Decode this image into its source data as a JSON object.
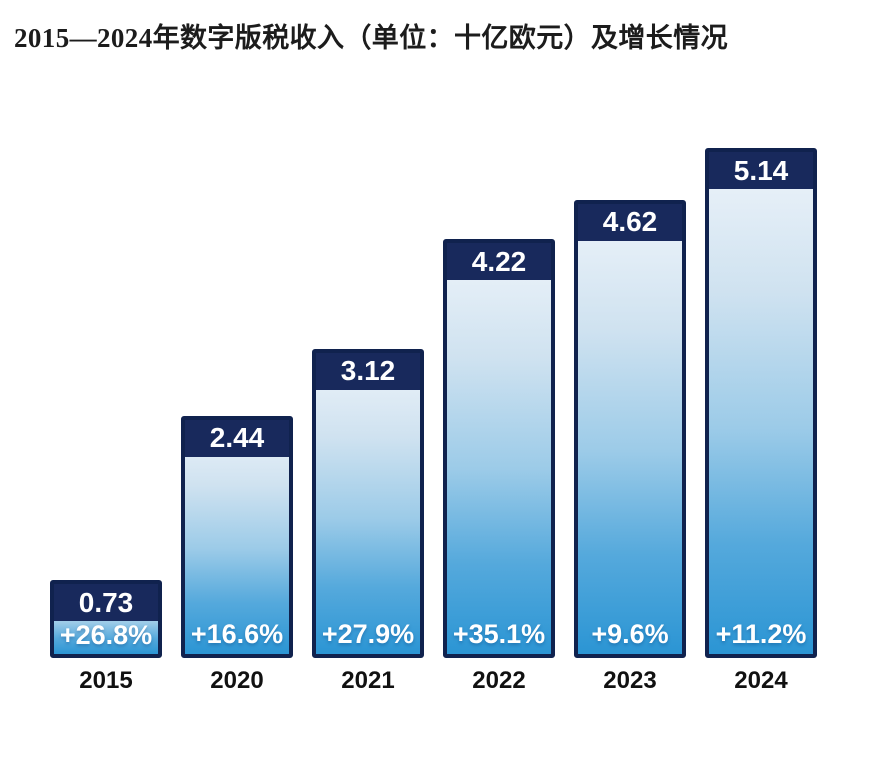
{
  "title": "2015—2024年数字版税收入（单位：十亿欧元）及增长情况",
  "chart_data": {
    "type": "bar",
    "title": "2015—2024年数字版税收入（单位：十亿欧元）及增长情况",
    "unit": "十亿欧元",
    "categories": [
      "2015",
      "2020",
      "2021",
      "2022",
      "2023",
      "2024"
    ],
    "values": [
      0.73,
      2.44,
      3.12,
      4.22,
      4.62,
      5.14
    ],
    "value_labels": [
      "0.73",
      "2.44",
      "3.12",
      "4.22",
      "4.62",
      "5.14"
    ],
    "growth_labels": [
      "+26.8%",
      "+16.6%",
      "+27.9%",
      "+35.1%",
      "+9.6%",
      "+11.2%"
    ],
    "xlabel": "",
    "ylabel": "",
    "ylim": [
      0,
      5.2
    ],
    "grid": false,
    "legend": false
  },
  "colors": {
    "bar_header": "#18295c",
    "bar_border": "#10224e",
    "bar_gradient_top": "#eef4fa",
    "bar_gradient_mid": "#9ccbe8",
    "bar_gradient_bottom": "#2b95d4",
    "value_text": "#ffffff",
    "growth_text": "#ffffff",
    "year_text": "#111111",
    "background": "#ffffff"
  }
}
